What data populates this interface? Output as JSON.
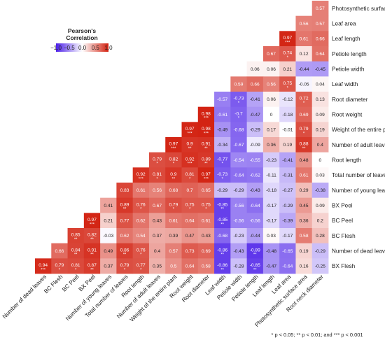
{
  "chart_data": {
    "type": "heatmap",
    "legend_title": "Pearson's\nCorrelation",
    "color_scale": {
      "min": -1.0,
      "max": 1.0,
      "low": "#4b1ee8",
      "mid": "#ffffff",
      "high": "#d21f0e"
    },
    "legend_ticks": [
      "−1.0",
      "−0.5",
      "0.0",
      "0.5",
      "1.0"
    ],
    "highlight_color": "#c7631f",
    "variables": [
      {
        "name": "Photosynthetic surface area",
        "highlight": false
      },
      {
        "name": "Leaf area",
        "highlight": false
      },
      {
        "name": "Leaf length",
        "highlight": false
      },
      {
        "name": "Petiole length",
        "highlight": false
      },
      {
        "name": "Petiole width",
        "highlight": false
      },
      {
        "name": "Leaf width",
        "highlight": false
      },
      {
        "name": "Root diameter",
        "highlight": false
      },
      {
        "name": "Root weight",
        "highlight": false
      },
      {
        "name": "Weight of the entire plant",
        "highlight": false
      },
      {
        "name": "Number of adult leaves",
        "highlight": false
      },
      {
        "name": "Root length",
        "highlight": false
      },
      {
        "name": "Total number of leaves",
        "highlight": false
      },
      {
        "name": "Number of young leaves",
        "highlight": false
      },
      {
        "name": "BX Peel",
        "highlight": true
      },
      {
        "name": "BC Peel",
        "highlight": true
      },
      {
        "name": "BC Flesh",
        "highlight": true
      },
      {
        "name": "Number of dead leaves",
        "highlight": false
      },
      {
        "name": "BX Flesh",
        "highlight": true
      }
    ],
    "columns": [
      "Number of dead leaves",
      "BC Flesh",
      "BC Peel",
      "BX Peel",
      "Number of young leaves",
      "Total number of leaves",
      "Root length",
      "Number of adult leaves",
      "Weight of the entire plant",
      "Root weight",
      "Root diameter",
      "Leaf width",
      "Petiole width",
      "Petiole length",
      "Leaf length",
      "Leaf area",
      "Photosynthetic surface area",
      "Root neck diameter"
    ],
    "rows": [
      {
        "cells": [
          [
            "0.57",
            ""
          ]
        ]
      },
      {
        "cells": [
          [
            "0.56",
            ""
          ],
          [
            "0.57",
            ""
          ]
        ]
      },
      {
        "cells": [
          [
            "0.97",
            "***"
          ],
          [
            "0.61",
            ""
          ],
          [
            "0.66",
            ""
          ]
        ]
      },
      {
        "cells": [
          [
            "0.67",
            ""
          ],
          [
            "0.74",
            "*"
          ],
          [
            "0.12",
            ""
          ],
          [
            "0.64",
            ""
          ]
        ]
      },
      {
        "cells": [
          [
            "0.06",
            ""
          ],
          [
            "0.06",
            ""
          ],
          [
            "0.21",
            ""
          ],
          [
            "-0.44",
            ""
          ],
          [
            "-0.45",
            ""
          ]
        ]
      },
      {
        "cells": [
          [
            "0.59",
            ""
          ],
          [
            "0.66",
            ""
          ],
          [
            "0.56",
            ""
          ],
          [
            "0.75",
            "*"
          ],
          [
            "-0.05",
            ""
          ],
          [
            "0.04",
            ""
          ]
        ]
      },
      {
        "cells": [
          [
            "-0.57",
            ""
          ],
          [
            "-0.73",
            "*"
          ],
          [
            "-0.41",
            ""
          ],
          [
            "0.06",
            ""
          ],
          [
            "-0.12",
            ""
          ],
          [
            "0.72",
            "*"
          ],
          [
            "0.13",
            ""
          ]
        ]
      },
      {
        "cells": [
          [
            "0.98",
            "***"
          ],
          [
            "-0.61",
            ""
          ],
          [
            "-0.7",
            "*"
          ],
          [
            "-0.47",
            ""
          ],
          [
            "0",
            ""
          ],
          [
            "-0.18",
            ""
          ],
          [
            "0.69",
            ""
          ],
          [
            "0.09",
            ""
          ]
        ]
      },
      {
        "cells": [
          [
            "0.97",
            "***"
          ],
          [
            "0.98",
            "***"
          ],
          [
            "-0.49",
            ""
          ],
          [
            "-0.68",
            ""
          ],
          [
            "-0.29",
            ""
          ],
          [
            "0.17",
            ""
          ],
          [
            "-0.01",
            ""
          ],
          [
            "0.79",
            "*"
          ],
          [
            "0.19",
            ""
          ]
        ]
      },
      {
        "cells": [
          [
            "0.97",
            "***"
          ],
          [
            "0.9",
            "**"
          ],
          [
            "0.91",
            "**"
          ],
          [
            "-0.34",
            ""
          ],
          [
            "-0.67",
            ""
          ],
          [
            "-0.09",
            ""
          ],
          [
            "0.36",
            ""
          ],
          [
            "0.19",
            ""
          ],
          [
            "0.88",
            "**"
          ],
          [
            "0.4",
            ""
          ]
        ]
      },
      {
        "cells": [
          [
            "0.79",
            "*"
          ],
          [
            "0.82",
            "*"
          ],
          [
            "0.92",
            "***"
          ],
          [
            "0.89",
            "**"
          ],
          [
            "-0.77",
            "*"
          ],
          [
            "-0.54",
            ""
          ],
          [
            "-0.55",
            ""
          ],
          [
            "-0.23",
            ""
          ],
          [
            "-0.41",
            ""
          ],
          [
            "0.48",
            ""
          ],
          [
            "0",
            ""
          ]
        ]
      },
      {
        "cells": [
          [
            "0.92",
            "***"
          ],
          [
            "0.81",
            "*"
          ],
          [
            "0.9",
            "**"
          ],
          [
            "0.81",
            "*"
          ],
          [
            "0.97",
            "***"
          ],
          [
            "-0.73",
            "*"
          ],
          [
            "-0.64",
            ""
          ],
          [
            "-0.62",
            ""
          ],
          [
            "-0.11",
            ""
          ],
          [
            "-0.31",
            ""
          ],
          [
            "0.61",
            ""
          ],
          [
            "0.03",
            ""
          ]
        ]
      },
      {
        "cells": [
          [
            "0.83",
            ""
          ],
          [
            "0.61",
            ""
          ],
          [
            "0.56",
            ""
          ],
          [
            "0.68",
            ""
          ],
          [
            "0.7",
            ""
          ],
          [
            "0.65",
            ""
          ],
          [
            "-0.29",
            ""
          ],
          [
            "-0.29",
            ""
          ],
          [
            "-0.43",
            ""
          ],
          [
            "-0.18",
            ""
          ],
          [
            "-0.27",
            ""
          ],
          [
            "0.29",
            ""
          ],
          [
            "-0.38",
            ""
          ]
        ]
      },
      {
        "cells": [
          [
            "0.41",
            ""
          ],
          [
            "0.89",
            "**"
          ],
          [
            "0.76",
            "*"
          ],
          [
            "0.67",
            ""
          ],
          [
            "0.79",
            "*"
          ],
          [
            "0.75",
            "*"
          ],
          [
            "0.75",
            "*"
          ],
          [
            "-0.85",
            "**"
          ],
          [
            "-0.56",
            ""
          ],
          [
            "-0.64",
            ""
          ],
          [
            "-0.17",
            ""
          ],
          [
            "-0.29",
            ""
          ],
          [
            "0.45",
            ""
          ],
          [
            "0.09",
            ""
          ]
        ]
      },
      {
        "cells": [
          [
            "0.97",
            "***"
          ],
          [
            "0.21",
            ""
          ],
          [
            "0.77",
            ""
          ],
          [
            "0.62",
            ""
          ],
          [
            "0.43",
            ""
          ],
          [
            "0.61",
            ""
          ],
          [
            "0.64",
            ""
          ],
          [
            "0.61",
            ""
          ],
          [
            "-0.85",
            "**"
          ],
          [
            "-0.56",
            ""
          ],
          [
            "-0.56",
            ""
          ],
          [
            "-0.17",
            ""
          ],
          [
            "-0.39",
            ""
          ],
          [
            "0.36",
            ""
          ],
          [
            "0.2",
            ""
          ]
        ]
      },
      {
        "cells": [
          [
            "0.85",
            "**"
          ],
          [
            "0.82",
            "**"
          ],
          [
            "-0.03",
            ""
          ],
          [
            "0.62",
            ""
          ],
          [
            "0.54",
            ""
          ],
          [
            "0.37",
            ""
          ],
          [
            "0.39",
            ""
          ],
          [
            "0.47",
            ""
          ],
          [
            "0.43",
            ""
          ],
          [
            "-0.68",
            ""
          ],
          [
            "-0.23",
            ""
          ],
          [
            "-0.44",
            ""
          ],
          [
            "0.03",
            ""
          ],
          [
            "-0.17",
            ""
          ],
          [
            "0.58",
            ""
          ],
          [
            "0.28",
            ""
          ]
        ]
      },
      {
        "cells": [
          [
            "0.66",
            ""
          ],
          [
            "0.84",
            "**"
          ],
          [
            "0.91",
            "**"
          ],
          [
            "0.49",
            ""
          ],
          [
            "0.86",
            "**"
          ],
          [
            "0.76",
            "*"
          ],
          [
            "0.4",
            ""
          ],
          [
            "0.57",
            ""
          ],
          [
            "0.73",
            ""
          ],
          [
            "0.69",
            ""
          ],
          [
            "-0.86",
            "**"
          ],
          [
            "-0.43",
            ""
          ],
          [
            "-0.89",
            "**"
          ],
          [
            "-0.48",
            ""
          ],
          [
            "-0.65",
            ""
          ],
          [
            "0.19",
            ""
          ],
          [
            "-0.29",
            ""
          ]
        ]
      },
      {
        "cells": [
          [
            "0.94",
            "***"
          ],
          [
            "0.79",
            "*"
          ],
          [
            "0.81",
            "*"
          ],
          [
            "0.87",
            "**"
          ],
          [
            "0.37",
            ""
          ],
          [
            "0.79",
            "*"
          ],
          [
            "0.77",
            "*"
          ],
          [
            "0.35",
            ""
          ],
          [
            "0.5",
            ""
          ],
          [
            "0.64",
            ""
          ],
          [
            "0.58",
            ""
          ],
          [
            "-0.86",
            "**"
          ],
          [
            "-0.28",
            ""
          ],
          [
            "-0.85",
            "**"
          ],
          [
            "-0.47",
            ""
          ],
          [
            "-0.64",
            ""
          ],
          [
            "0.16",
            ""
          ],
          [
            "-0.25",
            ""
          ]
        ]
      }
    ]
  },
  "footnote": "* p < 0.05; ** p < 0.01; and *** p < 0.001"
}
